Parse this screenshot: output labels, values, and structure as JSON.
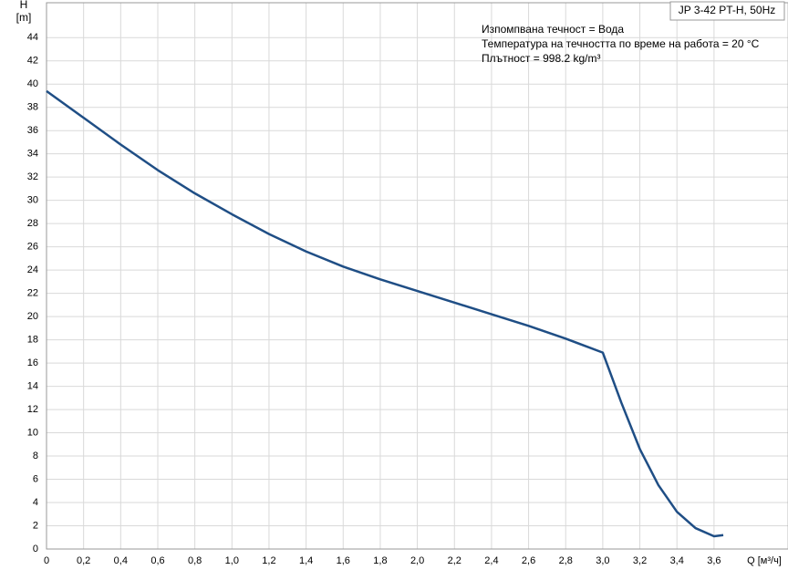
{
  "chart_data": {
    "type": "line",
    "title": "JP 3-42 PT-H, 50Hz",
    "annotations": [
      "Изпомпвана течност = Вода",
      "Температура на течността по време на работа = 20 °C",
      "Плътност = 998.2 kg/m³"
    ],
    "y_label": "H",
    "y_unit": "[m]",
    "x_label": "Q [м³/ч]",
    "x": [
      0,
      0.2,
      0.4,
      0.6,
      0.8,
      1.0,
      1.2,
      1.4,
      1.6,
      1.8,
      2.0,
      2.2,
      2.4,
      2.6,
      2.8,
      3.0,
      3.1,
      3.2,
      3.3,
      3.4,
      3.5,
      3.6,
      3.65
    ],
    "series": [
      {
        "color": "#1f4e85",
        "values": [
          39.4,
          37.1,
          34.8,
          32.6,
          30.6,
          28.8,
          27.1,
          25.6,
          24.3,
          23.2,
          22.2,
          21.2,
          20.2,
          19.2,
          18.1,
          16.9,
          12.6,
          8.6,
          5.5,
          3.2,
          1.8,
          1.1,
          1.2
        ]
      }
    ],
    "xlim": [
      0,
      4
    ],
    "ylim": [
      0,
      47
    ],
    "xticks": [
      0,
      {
        "value": 0.2,
        "label": "0,2"
      },
      {
        "value": 0.4,
        "label": "0,4"
      },
      {
        "value": 0.6,
        "label": "0,6"
      },
      {
        "value": 0.8,
        "label": "0,8"
      },
      {
        "value": 1.0,
        "label": "1,0"
      },
      {
        "value": 1.2,
        "label": "1,2"
      },
      {
        "value": 1.4,
        "label": "1,4"
      },
      {
        "value": 1.6,
        "label": "1,6"
      },
      {
        "value": 1.8,
        "label": "1,8"
      },
      {
        "value": 2.0,
        "label": "2,0"
      },
      {
        "value": 2.2,
        "label": "2,2"
      },
      {
        "value": 2.4,
        "label": "2,4"
      },
      {
        "value": 2.6,
        "label": "2,6"
      },
      {
        "value": 2.8,
        "label": "2,8"
      },
      {
        "value": 3.0,
        "label": "3,0"
      },
      {
        "value": 3.2,
        "label": "3,2"
      },
      {
        "value": 3.4,
        "label": "3,4"
      },
      {
        "value": 3.6,
        "label": "3,6"
      }
    ],
    "yticks": [
      0,
      2,
      4,
      6,
      8,
      10,
      12,
      14,
      16,
      18,
      20,
      22,
      24,
      26,
      28,
      30,
      32,
      34,
      36,
      38,
      40,
      42,
      44
    ],
    "grid": true
  }
}
